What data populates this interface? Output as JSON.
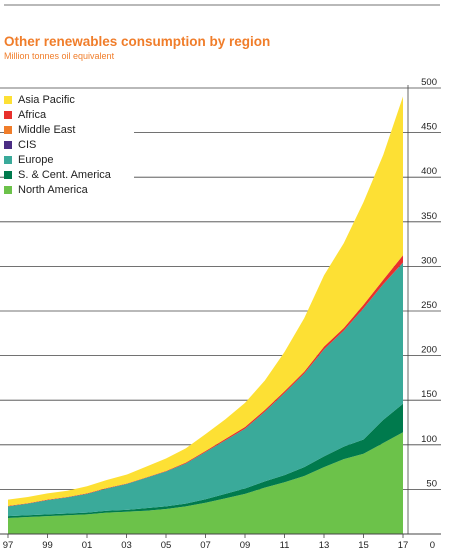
{
  "title": "Other renewables consumption by region",
  "subtitle": "Million tonnes oil equivalent",
  "chart_data": {
    "type": "area",
    "stacked": true,
    "title": "Other renewables consumption by region",
    "ylabel": "Million tonnes oil equivalent",
    "x": [
      1997,
      1998,
      1999,
      2000,
      2001,
      2002,
      2003,
      2004,
      2005,
      2006,
      2007,
      2008,
      2009,
      2010,
      2011,
      2012,
      2013,
      2014,
      2015,
      2016,
      2017
    ],
    "x_tick_labels": [
      "97",
      "99",
      "01",
      "03",
      "05",
      "07",
      "09",
      "11",
      "13",
      "15",
      "17"
    ],
    "x_tick_values": [
      1997,
      1999,
      2001,
      2003,
      2005,
      2007,
      2009,
      2011,
      2013,
      2015,
      2017
    ],
    "y_ticks": [
      "50",
      "100",
      "150",
      "200",
      "250",
      "300",
      "350",
      "400",
      "450",
      "500"
    ],
    "y_tick_values": [
      50,
      100,
      150,
      200,
      250,
      300,
      350,
      400,
      450,
      500
    ],
    "y_zero_label": "0",
    "ylim": [
      0,
      500
    ],
    "axis_position": "right",
    "grid": true,
    "legend_position": "top-left",
    "series": [
      {
        "name": "North America",
        "color": "#6cc24a",
        "values": [
          18,
          19,
          20,
          21,
          22,
          24,
          25,
          26,
          28,
          31,
          35,
          40,
          45,
          52,
          58,
          65,
          75,
          84,
          90,
          102,
          114
        ]
      },
      {
        "name": "S. & Cent. America",
        "color": "#007a4d",
        "values": [
          2,
          2,
          2,
          2,
          2,
          2,
          2,
          3,
          3,
          3,
          4,
          5,
          6,
          7,
          8,
          10,
          12,
          14,
          16,
          26,
          32
        ]
      },
      {
        "name": "Europe",
        "color": "#3aaa9a",
        "values": [
          11,
          13,
          16,
          18,
          21,
          25,
          29,
          34,
          39,
          45,
          53,
          60,
          67,
          78,
          92,
          105,
          120,
          130,
          147,
          152,
          158
        ]
      },
      {
        "name": "CIS",
        "color": "#4b2d84",
        "values": [
          0,
          0,
          0,
          0,
          0,
          0,
          0,
          0,
          0,
          0,
          0,
          0,
          0,
          0,
          0,
          0,
          0,
          0,
          0,
          0,
          0.3
        ]
      },
      {
        "name": "Middle East",
        "color": "#f07d2a",
        "values": [
          0,
          0,
          0,
          0,
          0,
          0,
          0,
          0,
          0,
          0,
          0,
          0,
          0,
          0,
          0,
          0,
          0,
          0,
          0,
          0,
          0.2
        ]
      },
      {
        "name": "Africa",
        "color": "#e8302c",
        "values": [
          0.5,
          0.5,
          0.5,
          0.5,
          0.5,
          0.5,
          0.5,
          0.5,
          0.6,
          1,
          1,
          1.5,
          2,
          2,
          2,
          2,
          3,
          3,
          4,
          5,
          8
        ]
      },
      {
        "name": "Asia Pacific",
        "color": "#fde034",
        "values": [
          7,
          7,
          7,
          7,
          8,
          9,
          10,
          12,
          14,
          16,
          19,
          22,
          27,
          33,
          44,
          60,
          80,
          95,
          115,
          140,
          178
        ]
      }
    ],
    "legend_order": [
      "Asia Pacific",
      "Africa",
      "Middle East",
      "CIS",
      "Europe",
      "S. & Cent. America",
      "North America"
    ]
  }
}
